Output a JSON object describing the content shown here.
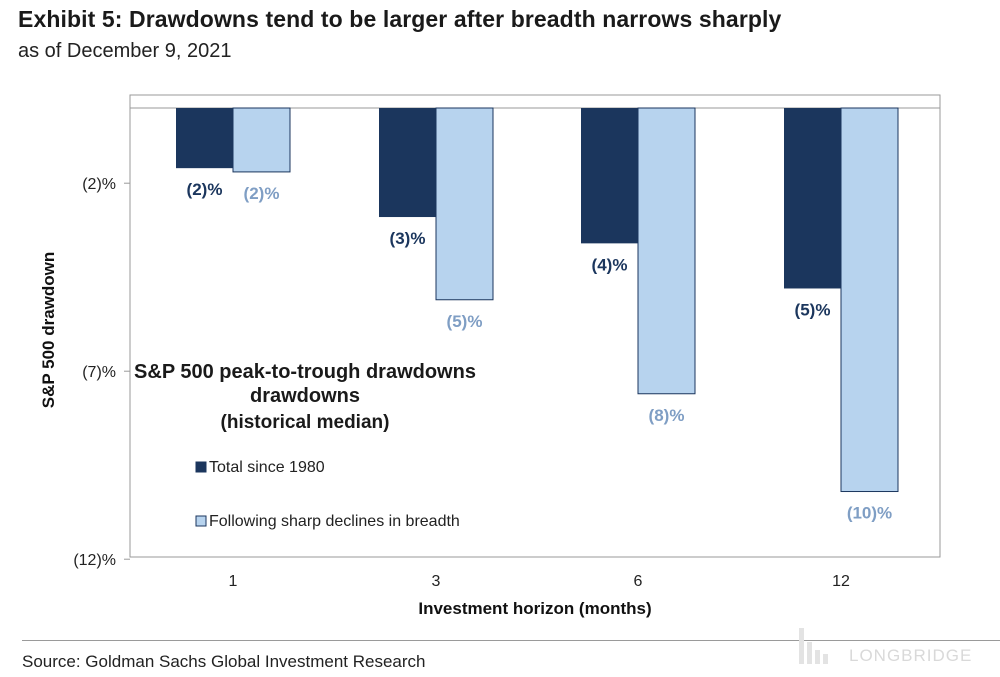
{
  "header": {
    "title": "Exhibit 5: Drawdowns tend to be larger after breadth narrows sharply",
    "subtitle": "as of December 9, 2021"
  },
  "footer": {
    "source": "Source: Goldman Sachs Global Investment Research",
    "watermark": "LONGBRIDGE"
  },
  "colors": {
    "series_total": "#1b365d",
    "series_following": "#b7d3ee",
    "label_following": "#7f9ec4",
    "label_total": "#1b365d"
  },
  "chart_data": {
    "type": "bar",
    "title": "S&P 500 peak-to-trough drawdowns",
    "subtitle": "(historical median)",
    "xlabel": "Investment horizon (months)",
    "ylabel": "S&P 500 drawdown",
    "categories": [
      "1",
      "3",
      "6",
      "12"
    ],
    "series": [
      {
        "name": "Total since 1980",
        "values": [
          -1.6,
          -2.9,
          -3.6,
          -4.8
        ],
        "labels": [
          "(2)%",
          "(3)%",
          "(4)%",
          "(5)%"
        ]
      },
      {
        "name": "Following sharp declines in breadth",
        "values": [
          -1.7,
          -5.1,
          -7.6,
          -10.2
        ],
        "labels": [
          "(2)%",
          "(5)%",
          "(8)%",
          "(10)%"
        ]
      }
    ],
    "yticks": [
      -2,
      -7,
      -12
    ],
    "ytick_labels": [
      "(2)%",
      "(7)%",
      "(12)%"
    ],
    "ylim": [
      -12,
      0
    ],
    "legend_position": "inside-left",
    "grid": false
  }
}
